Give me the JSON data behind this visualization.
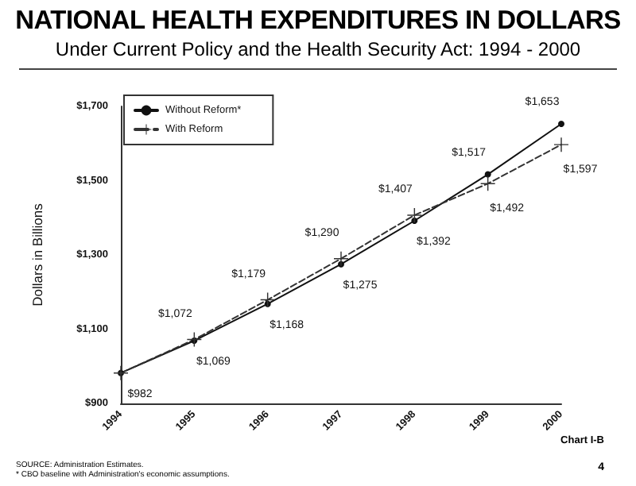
{
  "chart_data": {
    "type": "line",
    "title": "NATIONAL HEALTH EXPENDITURES IN DOLLARS",
    "subtitle": "Under Current Policy and the Health Security Act:  1994 - 2000",
    "ylabel": "Dollars in Billions",
    "categories": [
      "1994",
      "1995",
      "1996",
      "1997",
      "1998",
      "1999",
      "2000"
    ],
    "series": [
      {
        "name": "Without Reform*",
        "color": "#111111",
        "marker": "circle",
        "line_style": "solid",
        "values": [
          982,
          1069,
          1168,
          1275,
          1392,
          1517,
          1653
        ],
        "value_labels": [
          "$982",
          "$1,069",
          "$1,168",
          "$1,275",
          "$1,392",
          "$1,517",
          "$1,653"
        ]
      },
      {
        "name": "With Reform",
        "color": "#333333",
        "marker": "cross",
        "line_style": "dashed",
        "values": [
          982,
          1072,
          1179,
          1290,
          1407,
          1492,
          1597
        ],
        "value_labels": [
          null,
          "$1,072",
          "$1,179",
          "$1,290",
          "$1,407",
          "$1,492",
          "$1,597"
        ]
      }
    ],
    "ylim": [
      900,
      1700
    ],
    "yticks": [
      {
        "value": 900,
        "label": "$900"
      },
      {
        "value": 1100,
        "label": "$1,100"
      },
      {
        "value": 1300,
        "label": "$1,300"
      },
      {
        "value": 1500,
        "label": "$1,500"
      },
      {
        "value": 1700,
        "label": "$1,700"
      }
    ],
    "grid": false,
    "legend": "top left",
    "annotations": [
      "Chart I-B",
      "SOURCE:  Administration Estimates.",
      "* CBO baseline with Administration's economic assumptions.",
      "4"
    ]
  }
}
